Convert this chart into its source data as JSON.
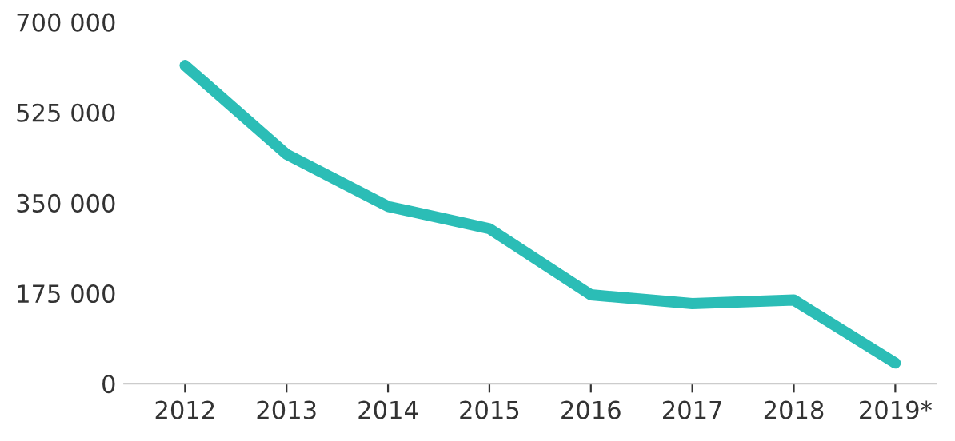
{
  "chart_data": {
    "type": "line",
    "categories": [
      "2012",
      "2013",
      "2014",
      "2015",
      "2016",
      "2017",
      "2018",
      "2019*"
    ],
    "series": [
      {
        "color": "#2bbdb6",
        "values": [
          616000,
          444000,
          343000,
          300000,
          172000,
          155000,
          162000,
          40000
        ]
      }
    ],
    "ylim": [
      0,
      700000
    ],
    "yticks": [
      {
        "value": 0,
        "label": "0"
      },
      {
        "value": 175000,
        "label": "175 000"
      },
      {
        "value": 350000,
        "label": "350 000"
      },
      {
        "value": 525000,
        "label": "525 000"
      },
      {
        "value": 700000,
        "label": "700 000"
      }
    ],
    "grid": false,
    "marker": "none",
    "line_style": "solid"
  }
}
